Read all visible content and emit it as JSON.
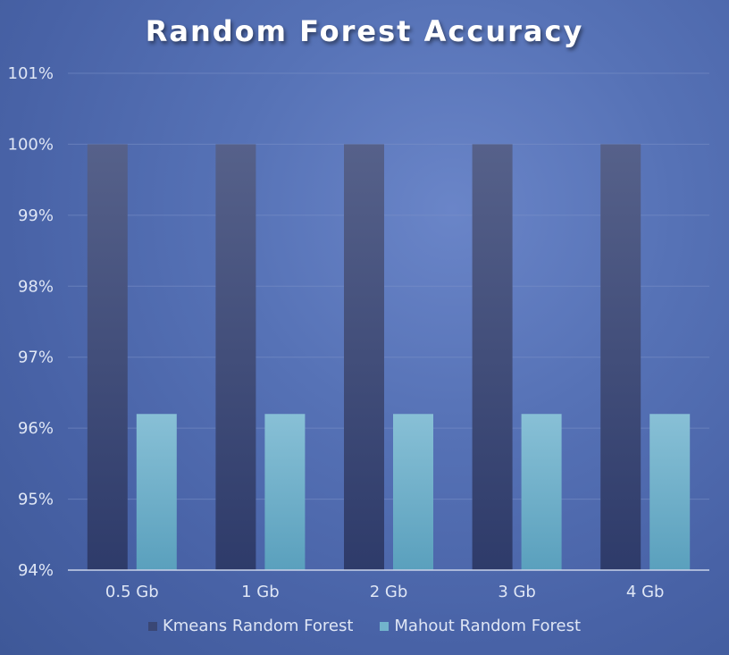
{
  "chart_data": {
    "type": "bar",
    "title": "Random Forest Accuracy",
    "xlabel": "",
    "ylabel": "",
    "categories": [
      "0.5 Gb",
      "1 Gb",
      "2 Gb",
      "3 Gb",
      "4 Gb"
    ],
    "series": [
      {
        "name": "Kmeans Random Forest",
        "values": [
          100,
          100,
          100,
          100,
          100
        ],
        "color": "#3a4775"
      },
      {
        "name": "Mahout Random Forest",
        "values": [
          96.2,
          96.2,
          96.2,
          96.2,
          96.2
        ],
        "color": "#72b3cc"
      }
    ],
    "ylim": [
      94,
      101
    ],
    "yticks": [
      "94%",
      "95%",
      "96%",
      "97%",
      "98%",
      "99%",
      "100%",
      "101%"
    ],
    "grid": true,
    "legend_position": "bottom"
  }
}
